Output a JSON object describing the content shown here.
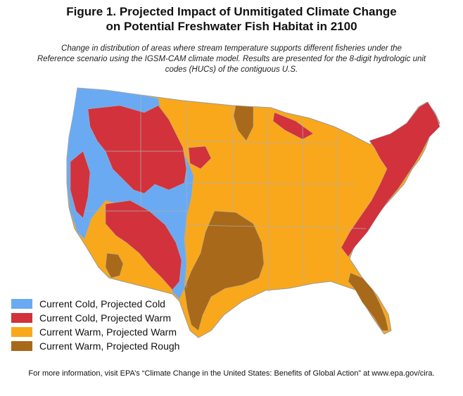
{
  "title_line1": "Figure 1. Projected Impact of Unmitigated Climate Change",
  "title_line2": "on Potential Freshwater Fish Habitat in 2100",
  "subtitle_line1": "Change in distribution of areas where stream temperature supports different fisheries under the",
  "subtitle_line2": "Reference scenario using the IGSM-CAM climate model. Results are presented for the 8-digit hydrologic unit",
  "subtitle_line3": "codes (HUCs) of the contiguous U.S.",
  "legend": [
    {
      "label": "Current Cold, Projected Cold",
      "color": "#6aaaf2"
    },
    {
      "label": "Current Cold, Projected Warm",
      "color": "#d2323c"
    },
    {
      "label": "Current Warm, Projected Warm",
      "color": "#f9a81b"
    },
    {
      "label": "Current Warm, Projected Rough",
      "color": "#a8691a"
    }
  ],
  "colors": {
    "boundary": "#b0b0b0"
  },
  "footer": "For more information, visit EPA’s “Climate Change in the United States: Benefits of Global Action” at www.epa.gov/cira."
}
